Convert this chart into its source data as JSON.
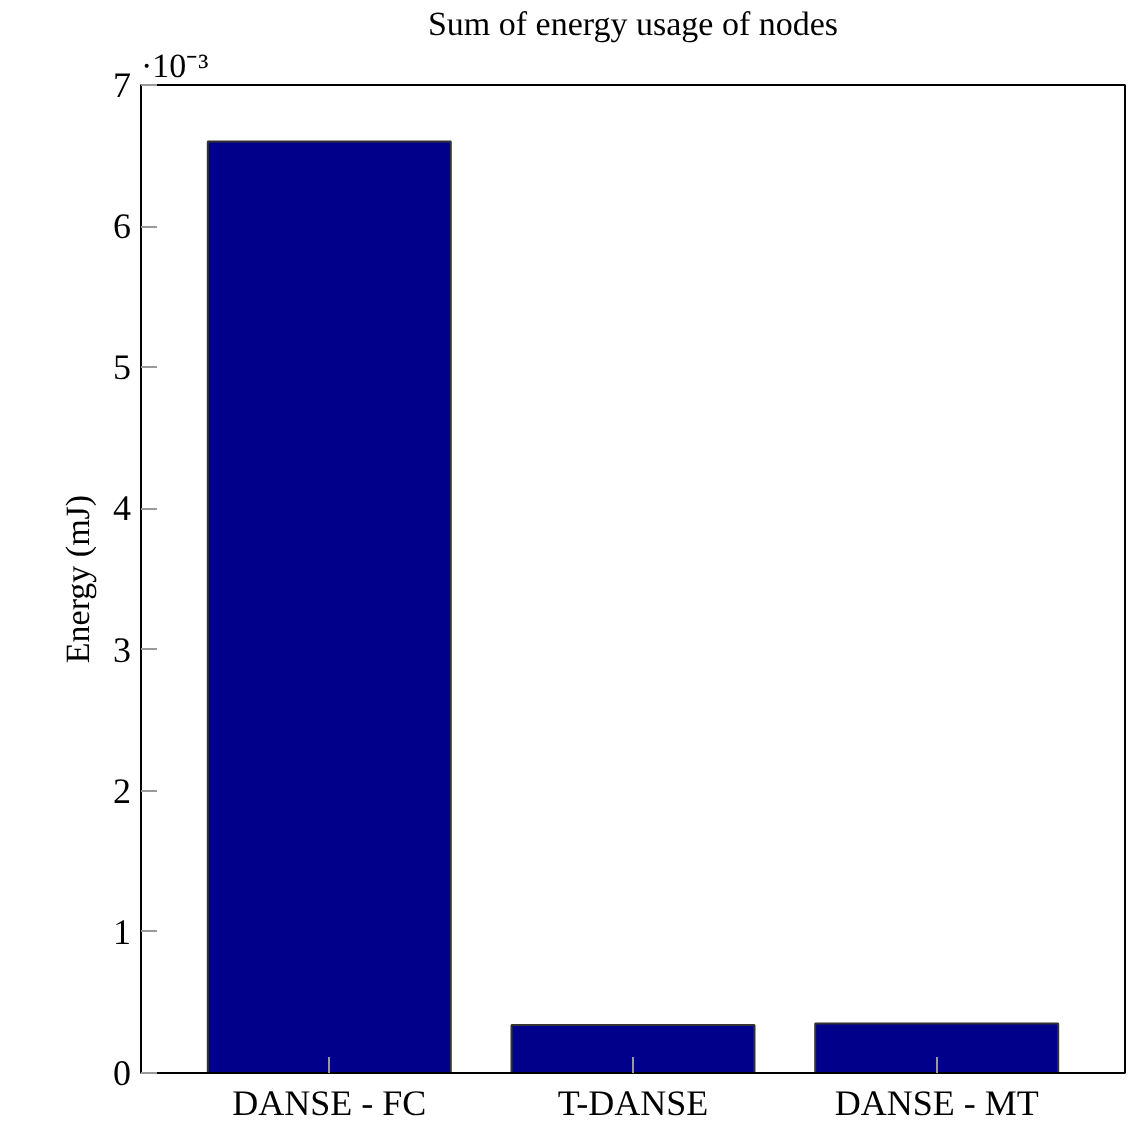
{
  "chart_data": {
    "type": "bar",
    "title": "Sum of energy usage of nodes",
    "ylabel": "Energy (mJ)",
    "categories": [
      "DANSE - FC",
      "T-DANSE",
      "DANSE - MT"
    ],
    "values": [
      6.6,
      0.34,
      0.35
    ],
    "color": "#00008b",
    "ylim": [
      0,
      7
    ],
    "yticks": [
      0,
      1,
      2,
      3,
      4,
      5,
      6,
      7
    ],
    "annotations": [
      "·10⁻³"
    ],
    "grid": false
  }
}
